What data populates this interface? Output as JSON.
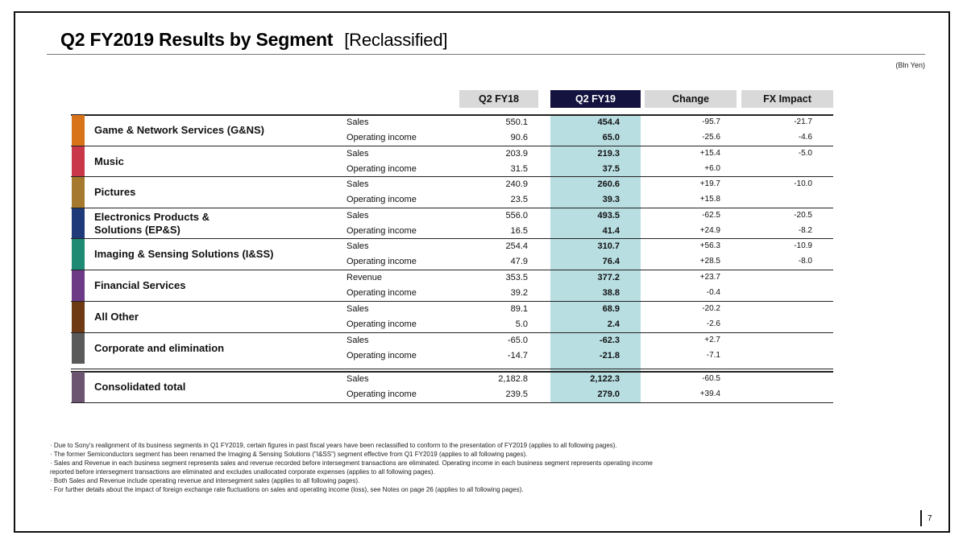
{
  "title": {
    "main": "Q2 FY2019  Results by Segment",
    "sub": "[Reclassified]"
  },
  "unit": "(Bln Yen)",
  "columns": [
    "Q2 FY18",
    "Q2 FY19",
    "Change",
    "FX Impact"
  ],
  "colors": {
    "header_current": "#14133f",
    "highlight_column": "#b8dee2",
    "header_other": "#d9d9d9"
  },
  "segments": [
    {
      "name": "Game & Network Services (G&NS)",
      "color": "#d9731a",
      "rows": [
        {
          "metric": "Sales",
          "fy18": "550.1",
          "fy19": "454.4",
          "change": "-95.7",
          "fx": "-21.7"
        },
        {
          "metric": "Operating income",
          "fy18": "90.6",
          "fy19": "65.0",
          "change": "-25.6",
          "fx": "-4.6"
        }
      ]
    },
    {
      "name": "Music",
      "color": "#c8384a",
      "rows": [
        {
          "metric": "Sales",
          "fy18": "203.9",
          "fy19": "219.3",
          "change": "+15.4",
          "fx": "-5.0"
        },
        {
          "metric": "Operating income",
          "fy18": "31.5",
          "fy19": "37.5",
          "change": "+6.0",
          "fx": ""
        }
      ]
    },
    {
      "name": "Pictures",
      "color": "#a57a2e",
      "rows": [
        {
          "metric": "Sales",
          "fy18": "240.9",
          "fy19": "260.6",
          "change": "+19.7",
          "fx": "-10.0"
        },
        {
          "metric": "Operating income",
          "fy18": "23.5",
          "fy19": "39.3",
          "change": "+15.8",
          "fx": ""
        }
      ]
    },
    {
      "name": "Electronics Products & Solutions (EP&S)",
      "line1": "Electronics Products &",
      "line2": "Solutions (EP&S)",
      "color": "#1f3a78",
      "rows": [
        {
          "metric": "Sales",
          "fy18": "556.0",
          "fy19": "493.5",
          "change": "-62.5",
          "fx": "-20.5"
        },
        {
          "metric": "Operating income",
          "fy18": "16.5",
          "fy19": "41.4",
          "change": "+24.9",
          "fx": "-8.2"
        }
      ]
    },
    {
      "name": "Imaging & Sensing Solutions (I&SS)",
      "color": "#1d8a74",
      "rows": [
        {
          "metric": "Sales",
          "fy18": "254.4",
          "fy19": "310.7",
          "change": "+56.3",
          "fx": "-10.9"
        },
        {
          "metric": "Operating income",
          "fy18": "47.9",
          "fy19": "76.4",
          "change": "+28.5",
          "fx": "-8.0"
        }
      ]
    },
    {
      "name": "Financial Services",
      "color": "#6d3a86",
      "rows": [
        {
          "metric": "Revenue",
          "fy18": "353.5",
          "fy19": "377.2",
          "change": "+23.7",
          "fx": ""
        },
        {
          "metric": "Operating income",
          "fy18": "39.2",
          "fy19": "38.8",
          "change": "-0.4",
          "fx": ""
        }
      ]
    },
    {
      "name": "All Other",
      "color": "#6e3a14",
      "rows": [
        {
          "metric": "Sales",
          "fy18": "89.1",
          "fy19": "68.9",
          "change": "-20.2",
          "fx": ""
        },
        {
          "metric": "Operating income",
          "fy18": "5.0",
          "fy19": "2.4",
          "change": "-2.6",
          "fx": ""
        }
      ]
    },
    {
      "name": "Corporate and elimination",
      "color": "#5a5a5a",
      "rows": [
        {
          "metric": "Sales",
          "fy18": "-65.0",
          "fy19": "-62.3",
          "change": "+2.7",
          "fx": ""
        },
        {
          "metric": "Operating income",
          "fy18": "-14.7",
          "fy19": "-21.8",
          "change": "-7.1",
          "fx": ""
        }
      ]
    },
    {
      "name": "Consolidated total",
      "color": "#6b5570",
      "rows": [
        {
          "metric": "Sales",
          "fy18": "2,182.8",
          "fy19": "2,122.3",
          "change": "-60.5",
          "fx": ""
        },
        {
          "metric": "Operating income",
          "fy18": "239.5",
          "fy19": "279.0",
          "change": "+39.4",
          "fx": ""
        }
      ]
    }
  ],
  "notes": [
    "· Due to Sony's realignment of its business segments in Q1 FY2019, certain figures in past fiscal years have been reclassified to conform to the presentation of FY2019 (applies to all following pages).",
    "· The former Semiconductors segment has been renamed the Imaging & Sensing Solutions (\"I&SS\") segment effective from Q1 FY2019 (applies to all following pages).",
    "· Sales and Revenue in each business segment represents sales and revenue recorded before intersegment transactions are eliminated. Operating income in each business segment represents operating income",
    "  reported before intersegment transactions are eliminated and excludes unallocated corporate expenses (applies to all following pages).",
    "· Both Sales and Revenue include operating revenue and intersegment sales (applies to all following pages).",
    "· For further details about the impact of foreign exchange rate fluctuations on sales and operating income (loss), see Notes on page 26 (applies to all following pages)."
  ],
  "page_number": "7"
}
